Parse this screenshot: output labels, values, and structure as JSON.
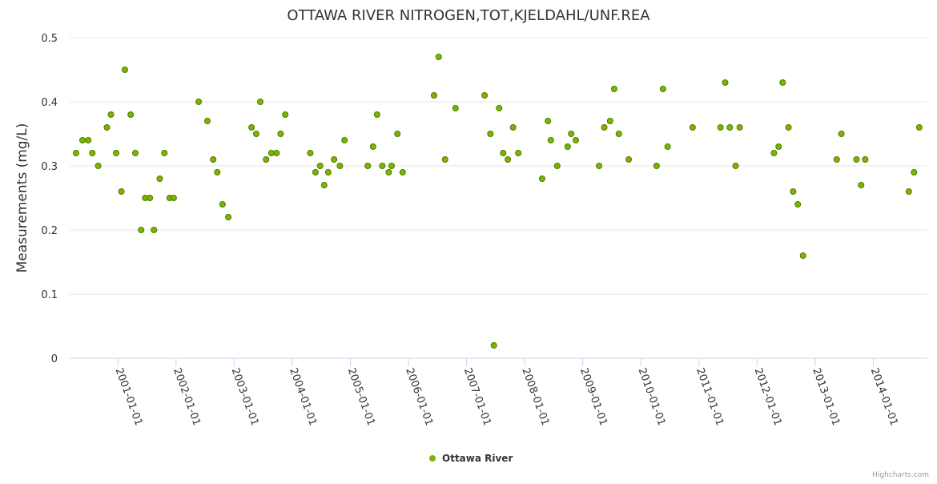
{
  "chart_data": {
    "type": "scatter",
    "title": "OTTAWA RIVER NITROGEN,TOT,KJELDAHL/UNF.REA",
    "xlabel": "",
    "ylabel": "Measurements (mg/L)",
    "ylim": [
      0,
      0.5
    ],
    "xlim": [
      2000.17,
      2014.93
    ],
    "y_ticks": [
      0,
      0.1,
      0.2,
      0.3,
      0.4,
      0.5
    ],
    "y_tick_labels": [
      "0",
      "0.1",
      "0.2",
      "0.3",
      "0.4",
      "0.5"
    ],
    "x_ticks": [
      2001,
      2002,
      2003,
      2004,
      2005,
      2006,
      2007,
      2008,
      2009,
      2010,
      2011,
      2012,
      2013,
      2014
    ],
    "x_tick_labels": [
      "2001-01-01",
      "2002-01-01",
      "2003-01-01",
      "2004-01-01",
      "2005-01-01",
      "2006-01-01",
      "2007-01-01",
      "2008-01-01",
      "2009-01-01",
      "2010-01-01",
      "2011-01-01",
      "2012-01-01",
      "2013-01-01",
      "2014-01-01"
    ],
    "grid": "horizontal",
    "legend_position": "bottom-center",
    "credits": "Highcharts.com",
    "series": [
      {
        "name": "Ottawa River",
        "color": "#7cb500",
        "border_color": "#4e7a00",
        "x_unit": "decimal year",
        "points": [
          [
            2000.28,
            0.32
          ],
          [
            2000.39,
            0.34
          ],
          [
            2000.49,
            0.34
          ],
          [
            2000.56,
            0.32
          ],
          [
            2000.66,
            0.3
          ],
          [
            2000.81,
            0.36
          ],
          [
            2000.88,
            0.38
          ],
          [
            2000.97,
            0.32
          ],
          [
            2001.06,
            0.26
          ],
          [
            2001.12,
            0.45
          ],
          [
            2001.22,
            0.38
          ],
          [
            2001.3,
            0.32
          ],
          [
            2001.4,
            0.2
          ],
          [
            2001.47,
            0.25
          ],
          [
            2001.55,
            0.25
          ],
          [
            2001.62,
            0.2
          ],
          [
            2001.72,
            0.28
          ],
          [
            2001.8,
            0.32
          ],
          [
            2001.89,
            0.25
          ],
          [
            2001.96,
            0.25
          ],
          [
            2002.39,
            0.4
          ],
          [
            2002.54,
            0.37
          ],
          [
            2002.64,
            0.31
          ],
          [
            2002.71,
            0.29
          ],
          [
            2002.8,
            0.24
          ],
          [
            2002.9,
            0.22
          ],
          [
            2003.3,
            0.36
          ],
          [
            2003.38,
            0.35
          ],
          [
            2003.45,
            0.4
          ],
          [
            2003.55,
            0.31
          ],
          [
            2003.64,
            0.32
          ],
          [
            2003.73,
            0.32
          ],
          [
            2003.8,
            0.35
          ],
          [
            2003.88,
            0.38
          ],
          [
            2004.31,
            0.32
          ],
          [
            2004.4,
            0.29
          ],
          [
            2004.48,
            0.3
          ],
          [
            2004.55,
            0.27
          ],
          [
            2004.62,
            0.29
          ],
          [
            2004.72,
            0.31
          ],
          [
            2004.82,
            0.3
          ],
          [
            2004.9,
            0.34
          ],
          [
            2005.3,
            0.3
          ],
          [
            2005.39,
            0.33
          ],
          [
            2005.46,
            0.38
          ],
          [
            2005.55,
            0.3
          ],
          [
            2005.66,
            0.29
          ],
          [
            2005.71,
            0.3
          ],
          [
            2005.81,
            0.35
          ],
          [
            2005.9,
            0.29
          ],
          [
            2006.44,
            0.41
          ],
          [
            2006.52,
            0.47
          ],
          [
            2006.63,
            0.31
          ],
          [
            2006.81,
            0.39
          ],
          [
            2007.31,
            0.41
          ],
          [
            2007.41,
            0.35
          ],
          [
            2007.47,
            0.02
          ],
          [
            2007.56,
            0.39
          ],
          [
            2007.63,
            0.32
          ],
          [
            2007.71,
            0.31
          ],
          [
            2007.8,
            0.36
          ],
          [
            2007.89,
            0.32
          ],
          [
            2008.3,
            0.28
          ],
          [
            2008.4,
            0.37
          ],
          [
            2008.45,
            0.34
          ],
          [
            2008.56,
            0.3
          ],
          [
            2008.74,
            0.33
          ],
          [
            2008.8,
            0.35
          ],
          [
            2008.88,
            0.34
          ],
          [
            2009.28,
            0.3
          ],
          [
            2009.37,
            0.36
          ],
          [
            2009.47,
            0.37
          ],
          [
            2009.54,
            0.42
          ],
          [
            2009.62,
            0.35
          ],
          [
            2009.79,
            0.31
          ],
          [
            2010.27,
            0.3
          ],
          [
            2010.38,
            0.42
          ],
          [
            2010.46,
            0.33
          ],
          [
            2010.89,
            0.36
          ],
          [
            2011.37,
            0.36
          ],
          [
            2011.45,
            0.43
          ],
          [
            2011.53,
            0.36
          ],
          [
            2011.63,
            0.3
          ],
          [
            2011.7,
            0.36
          ],
          [
            2012.29,
            0.32
          ],
          [
            2012.37,
            0.33
          ],
          [
            2012.44,
            0.43
          ],
          [
            2012.54,
            0.36
          ],
          [
            2012.62,
            0.26
          ],
          [
            2012.7,
            0.24
          ],
          [
            2012.79,
            0.16
          ],
          [
            2013.37,
            0.31
          ],
          [
            2013.45,
            0.35
          ],
          [
            2013.71,
            0.31
          ],
          [
            2013.79,
            0.27
          ],
          [
            2013.86,
            0.31
          ],
          [
            2014.61,
            0.26
          ],
          [
            2014.7,
            0.29
          ],
          [
            2014.79,
            0.36
          ]
        ]
      }
    ]
  }
}
